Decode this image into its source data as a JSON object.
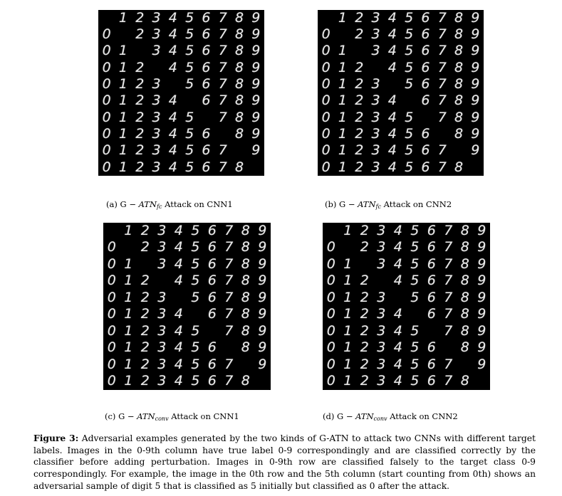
{
  "figure": {
    "panels": [
      {
        "id": "a",
        "caption_prefix": "(a) G − ",
        "caption_method": "ATN",
        "caption_sub": "fc",
        "caption_suffix": " Attack on CNN1",
        "digit_color": "#e8e8e8"
      },
      {
        "id": "b",
        "caption_prefix": "(b) G − ",
        "caption_method": "ATN",
        "caption_sub": "fc",
        "caption_suffix": " Attack on CNN2",
        "digit_color": "#e8e8e8"
      },
      {
        "id": "c",
        "caption_prefix": "(c) G − ",
        "caption_method": "ATN",
        "caption_sub": "conv",
        "caption_suffix": " Attack on CNN1",
        "digit_color": "#e8e8e8"
      },
      {
        "id": "d",
        "caption_prefix": "(d) G − ",
        "caption_method": "ATN",
        "caption_sub": "conv",
        "caption_suffix": " Attack on CNN2",
        "digit_color": "#e8e8e8"
      }
    ],
    "digit_rows": [
      [
        "",
        "1",
        "2",
        "3",
        "4",
        "5",
        "6",
        "7",
        "8",
        "9"
      ],
      [
        "0",
        "",
        "2",
        "3",
        "4",
        "5",
        "6",
        "7",
        "8",
        "9"
      ],
      [
        "0",
        "1",
        "",
        "3",
        "4",
        "5",
        "6",
        "7",
        "8",
        "9"
      ],
      [
        "0",
        "1",
        "2",
        "",
        "4",
        "5",
        "6",
        "7",
        "8",
        "9"
      ],
      [
        "0",
        "1",
        "2",
        "3",
        "",
        "5",
        "6",
        "7",
        "8",
        "9"
      ],
      [
        "0",
        "1",
        "2",
        "3",
        "4",
        "",
        "6",
        "7",
        "8",
        "9"
      ],
      [
        "0",
        "1",
        "2",
        "3",
        "4",
        "5",
        "",
        "7",
        "8",
        "9"
      ],
      [
        "0",
        "1",
        "2",
        "3",
        "4",
        "5",
        "6",
        "",
        "8",
        "9"
      ],
      [
        "0",
        "1",
        "2",
        "3",
        "4",
        "5",
        "6",
        "7",
        "",
        "9"
      ],
      [
        "0",
        "1",
        "2",
        "3",
        "4",
        "5",
        "6",
        "7",
        "8",
        ""
      ]
    ],
    "caption_label": "Figure 3:",
    "caption_text": " Adversarial examples generated by the two kinds of G-ATN to attack two CNNs with different target labels. Images in the 0-9th column have true label 0-9 correspondingly and are classified correctly by the classifier before adding perturbation. Images in 0-9th row are classified falsely to the target class 0-9 correspondingly. For example, the image in the 0th row and the 5th column (start counting from 0th) shows an adversarial sample of digit 5 that is classified as 5 initially but classified as 0 after the attack."
  }
}
